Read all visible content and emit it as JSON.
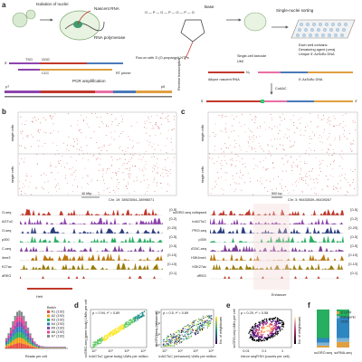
{
  "panel_a": {
    "label": "a",
    "isolation": "Isolation of nuclei",
    "nascent_rna": "Nascent RNA",
    "rna_polymerase": "RNA polymerase",
    "base": "Base",
    "sorting": "Single-nuclei sorting",
    "well_title": "Each well contains:",
    "well_line1": "Denaturing agent (urea)",
    "well_line2": "Unique 5'-AzScBc DNA",
    "run_on": "Run-on with 3'-(O-propargyl)-NTPs",
    "tso": "TSO",
    "ggg": "GGG",
    "ccc": "CCC",
    "rt_primer": "RT primer",
    "p7": "p7",
    "p5": "p5",
    "pcr": "PCR amplification",
    "reverse_transcription": "Reverse transcription",
    "barcode": "Single-cell barcode",
    "umi": "UMI",
    "alkyne_rna": "Alkyne nascent RNA",
    "azscbc": "5'-AzScBc DNA",
    "n3": "N₃",
    "cuaac": "CuAAC",
    "five": "5'",
    "three": "3'"
  },
  "panel_b": {
    "label": "b",
    "rows_label": "single cells",
    "scale": "10 kbp",
    "locus": "Chr. 19: 38923054–38998071",
    "tracks": [
      {
        "name": "O-seq",
        "range": "[0-5]"
      },
      {
        "name": "AGTuC",
        "range": "[0-2]"
      },
      {
        "name": "O-seq",
        "range": "[0-20]"
      },
      {
        "name": "p300",
        "range": "[0-5]"
      },
      {
        "name": "C-seq",
        "range": "[0-5]"
      },
      {
        "name": "4me3",
        "range": "[0-10]"
      },
      {
        "name": "K27ac",
        "range": "[0-10]"
      },
      {
        "name": "dREG",
        "range": "[0-1]"
      }
    ],
    "gene": "Helt"
  },
  "panel_c": {
    "label": "c",
    "rows_label": "single cells",
    "scale": "500 bp",
    "locus": "Chr. 3: 96433539–96439267",
    "tracks": [
      {
        "name": "scGRO-seq collapsed",
        "range": "[0-5]"
      },
      {
        "name": "InAGTuC",
        "range": "[0-2]"
      },
      {
        "name": "PRO-seq",
        "range": "[0-20]"
      },
      {
        "name": "p300",
        "range": "[0-5]"
      },
      {
        "name": "ATAC-seq",
        "range": "[0-5]"
      },
      {
        "name": "H3K4me1",
        "range": "[0-10]"
      },
      {
        "name": "H3K27ac",
        "range": "[0-10]"
      },
      {
        "name": "dREG",
        "range": "[0-1]"
      }
    ],
    "feature": "Enhancer"
  },
  "histogram": {
    "xlabel": "Reads per cell",
    "legend_title": "Batch",
    "batches": [
      "A1 (192)",
      "A2 (192)",
      "A3 (192)",
      "A4 (192)",
      "A5 (192)",
      "A6 (192)",
      "A7 (192)"
    ]
  },
  "panel_d": {
    "label": "d",
    "stat1": "ρ = 0.94, r² = 0.89",
    "ylabel1": "scGRO-seq (gene body) UMIs per cell",
    "xlabel1": "InAGTuC (gene body) UMIs per million",
    "stat2": "ρ = 0.5, r² = 0.89",
    "ylabel2": "scGRO-seq (enhancer)",
    "xlabel2": "InAGTuC (enhancer) UMIs per million",
    "ticks": [
      "10⁰",
      "10¹",
      "10²",
      "10³"
    ],
    "colorbar": "No. of neighbours"
  },
  "panel_e": {
    "label": "e",
    "stat": "ρ = 0.29, r² = 0.58",
    "ylabel": "scGRO-seq UMIs per cell",
    "xlabel": "Intron seqFISH (counts per cell)",
    "ticks": [
      "0.01",
      "0.1",
      "1"
    ],
    "colorbar": "No. of neighbours"
  },
  "panel_f": {
    "label": "f",
    "legend": [
      "3' UTR",
      "Intergenic",
      "CDS"
    ],
    "categories": [
      "scGRO-seq",
      "scRNA-seq"
    ]
  }
}
